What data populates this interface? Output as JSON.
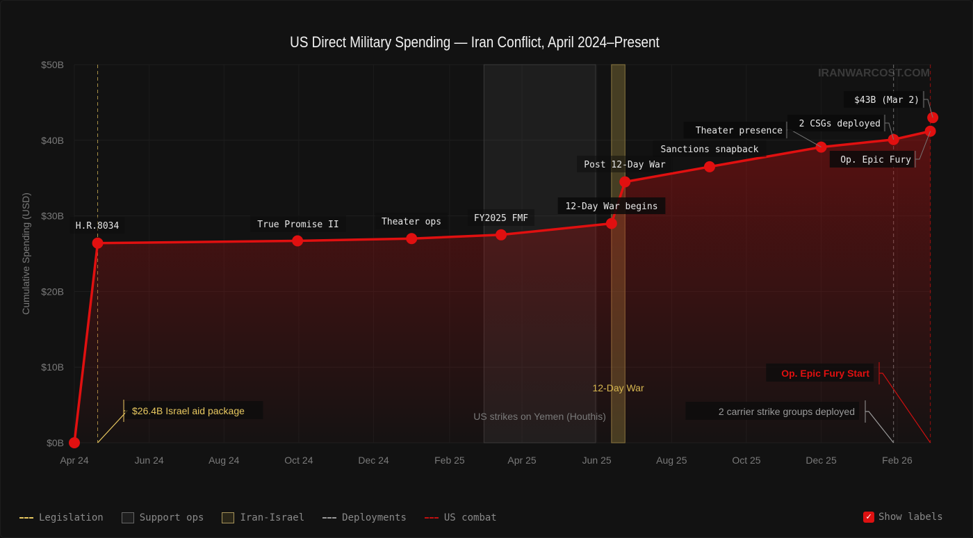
{
  "chart_data": {
    "type": "line",
    "title": "US Direct Military Spending — Iran Conflict, April 2024–Present",
    "ylabel": "Cumulative Spending (USD)",
    "xlabel": "",
    "ylim": [
      0,
      50
    ],
    "y_unit": "billion USD",
    "y_ticks": [
      "$0B",
      "$10B",
      "$20B",
      "$30B",
      "$40B",
      "$50B"
    ],
    "x_ticks": [
      {
        "date": "2024-04-01",
        "label": "Apr 24"
      },
      {
        "date": "2024-06-01",
        "label": "Jun 24"
      },
      {
        "date": "2024-08-01",
        "label": "Aug 24"
      },
      {
        "date": "2024-10-01",
        "label": "Oct 24"
      },
      {
        "date": "2024-12-01",
        "label": "Dec 24"
      },
      {
        "date": "2025-02-01",
        "label": "Feb 25"
      },
      {
        "date": "2025-04-01",
        "label": "Apr 25"
      },
      {
        "date": "2025-06-01",
        "label": "Jun 25"
      },
      {
        "date": "2025-08-01",
        "label": "Aug 25"
      },
      {
        "date": "2025-10-01",
        "label": "Oct 25"
      },
      {
        "date": "2025-12-01",
        "label": "Dec 25"
      },
      {
        "date": "2026-02-01",
        "label": "Feb 26"
      }
    ],
    "grid": true,
    "legend_position": "bottom",
    "line_color": "#e01010",
    "series": [
      {
        "points": [
          {
            "date": "2024-04-01",
            "value": 0,
            "label": ""
          },
          {
            "date": "2024-04-20",
            "value": 26.4,
            "label": "H.R.8034"
          },
          {
            "date": "2024-09-30",
            "value": 26.7,
            "label": "True Promise II"
          },
          {
            "date": "2025-01-01",
            "value": 27.0,
            "label": "Theater ops"
          },
          {
            "date": "2025-03-15",
            "value": 27.5,
            "label": "FY2025 FMF"
          },
          {
            "date": "2025-06-13",
            "value": 29.0,
            "label": "12-Day War begins"
          },
          {
            "date": "2025-06-24",
            "value": 34.5,
            "label": "Post 12-Day War"
          },
          {
            "date": "2025-09-01",
            "value": 36.5,
            "label": "Sanctions snapback"
          },
          {
            "date": "2025-12-01",
            "value": 39.1,
            "label": "Theater presence"
          },
          {
            "date": "2026-01-29",
            "value": 40.1,
            "label": "2 CSGs deployed"
          },
          {
            "date": "2026-02-28",
            "value": 41.2,
            "label": "Op. Epic Fury"
          },
          {
            "date": "2026-03-02",
            "value": 43.0,
            "label": "$43B (Mar 2)"
          }
        ]
      }
    ],
    "regions": [
      {
        "start": "2025-03-01",
        "end": "2025-05-31",
        "label": "US strikes on Yemen (Houthis)",
        "category": "Support ops",
        "color": "#777777"
      },
      {
        "start": "2025-06-13",
        "end": "2025-06-24",
        "label": "12-Day War",
        "category": "Iran-Israel",
        "color": "#c8b060"
      }
    ],
    "event_lines": [
      {
        "date": "2024-04-20",
        "label": "$26.4B Israel aid package",
        "category": "Legislation",
        "color": "#e8c860"
      },
      {
        "date": "2026-01-29",
        "label": "2 carrier strike groups deployed",
        "category": "Deployments",
        "color": "#9a9a9a"
      },
      {
        "date": "2026-02-28",
        "label": "Op. Epic Fury Start",
        "category": "US combat",
        "color": "#d01010"
      }
    ]
  },
  "watermark": "IRANWARCOST.COM",
  "legend": [
    {
      "label": "Legislation",
      "style": "dash",
      "color": "#e8c860"
    },
    {
      "label": "Support ops",
      "style": "box",
      "color": "#666666"
    },
    {
      "label": "Iran-Israel",
      "style": "box",
      "color": "#a8955a"
    },
    {
      "label": "Deployments",
      "style": "dash",
      "color": "#9a9a9a"
    },
    {
      "label": "US combat",
      "style": "dash",
      "color": "#c01010"
    }
  ],
  "show_labels": {
    "label": "Show labels",
    "checked": true
  }
}
